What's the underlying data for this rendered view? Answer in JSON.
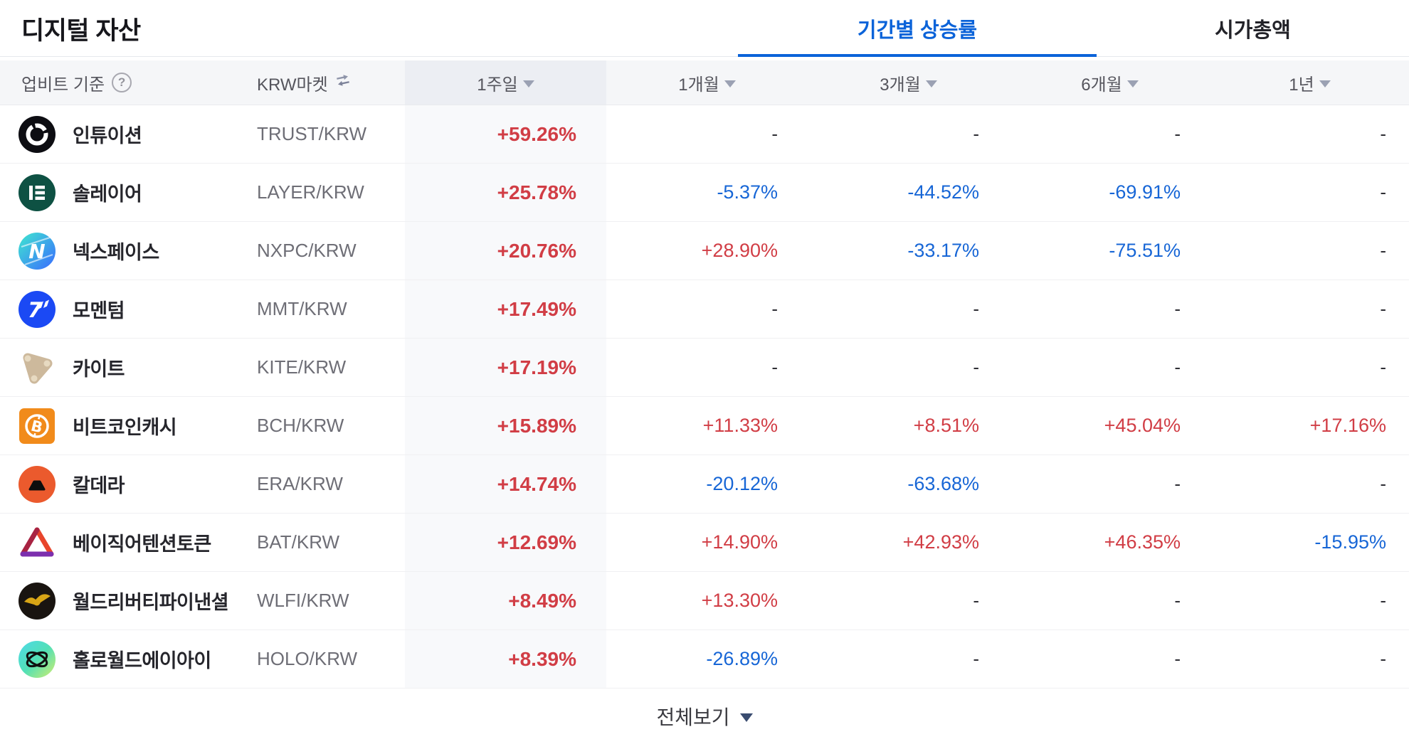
{
  "title": "디지털 자산",
  "tabs": [
    {
      "label": "기간별 상승률",
      "active": true
    },
    {
      "label": "시가총액",
      "active": false
    }
  ],
  "colors": {
    "rise_red": "#d13d45",
    "fall_blue": "#1766d6",
    "accent_blue": "#0b63d9"
  },
  "table": {
    "meta_label": "업비트 기준",
    "help_icon": "?",
    "market_label": "KRW마켓",
    "sort_columns": [
      "1주일",
      "1개월",
      "3개월",
      "6개월",
      "1년"
    ],
    "rows": [
      {
        "name": "인튜이션",
        "ticker": "TRUST/KRW",
        "icon": "trust",
        "values": [
          "+59.26%",
          "-",
          "-",
          "-",
          "-"
        ]
      },
      {
        "name": "솔레이어",
        "ticker": "LAYER/KRW",
        "icon": "layer",
        "values": [
          "+25.78%",
          "-5.37%",
          "-44.52%",
          "-69.91%",
          "-"
        ]
      },
      {
        "name": "넥스페이스",
        "ticker": "NXPC/KRW",
        "icon": "nxpc",
        "values": [
          "+20.76%",
          "+28.90%",
          "-33.17%",
          "-75.51%",
          "-"
        ]
      },
      {
        "name": "모멘텀",
        "ticker": "MMT/KRW",
        "icon": "mmt",
        "values": [
          "+17.49%",
          "-",
          "-",
          "-",
          "-"
        ]
      },
      {
        "name": "카이트",
        "ticker": "KITE/KRW",
        "icon": "kite",
        "values": [
          "+17.19%",
          "-",
          "-",
          "-",
          "-"
        ]
      },
      {
        "name": "비트코인캐시",
        "ticker": "BCH/KRW",
        "icon": "bch",
        "values": [
          "+15.89%",
          "+11.33%",
          "+8.51%",
          "+45.04%",
          "+17.16%"
        ]
      },
      {
        "name": "칼데라",
        "ticker": "ERA/KRW",
        "icon": "era",
        "values": [
          "+14.74%",
          "-20.12%",
          "-63.68%",
          "-",
          "-"
        ]
      },
      {
        "name": "베이직어텐션토큰",
        "ticker": "BAT/KRW",
        "icon": "bat",
        "values": [
          "+12.69%",
          "+14.90%",
          "+42.93%",
          "+46.35%",
          "-15.95%"
        ]
      },
      {
        "name": "월드리버티파이낸셜",
        "ticker": "WLFI/KRW",
        "icon": "wlfi",
        "values": [
          "+8.49%",
          "+13.30%",
          "-",
          "-",
          "-"
        ]
      },
      {
        "name": "홀로월드에이아이",
        "ticker": "HOLO/KRW",
        "icon": "holo",
        "values": [
          "+8.39%",
          "-26.89%",
          "-",
          "-",
          "-"
        ]
      }
    ]
  },
  "footer": {
    "view_all_label": "전체보기"
  }
}
